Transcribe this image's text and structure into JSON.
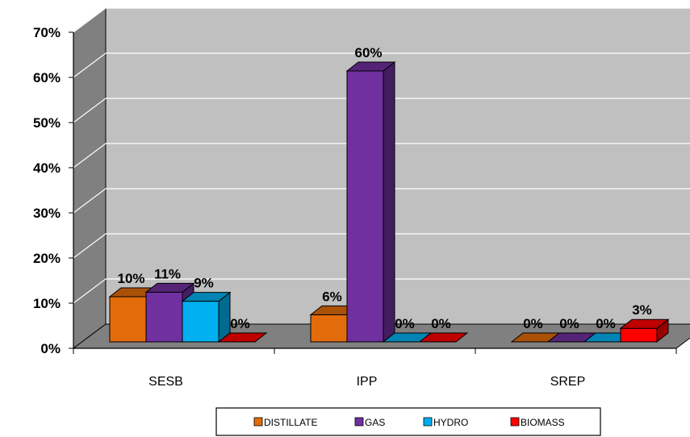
{
  "chart_data": {
    "type": "bar",
    "categories": [
      "SESB",
      "IPP",
      "SREP"
    ],
    "series": [
      {
        "name": "DISTILLATE",
        "color": "#E36C0A",
        "values": [
          10,
          6,
          0
        ]
      },
      {
        "name": "GAS",
        "color": "#7030A0",
        "values": [
          11,
          60,
          0
        ]
      },
      {
        "name": "HYDRO",
        "color": "#00B0F0",
        "values": [
          9,
          0,
          0
        ]
      },
      {
        "name": "BIOMASS",
        "color": "#FF0000",
        "values": [
          0,
          0,
          3
        ]
      }
    ],
    "data_labels": [
      [
        "10%",
        "6%",
        "0%"
      ],
      [
        "11%",
        "60%",
        "0%"
      ],
      [
        "9%",
        "0%",
        "0%"
      ],
      [
        "0%",
        "0%",
        "3%"
      ]
    ],
    "ylim": [
      0,
      70
    ],
    "yticks": [
      "0%",
      "10%",
      "20%",
      "30%",
      "40%",
      "50%",
      "60%",
      "70%"
    ],
    "grid": true,
    "legend": "bottom",
    "style": "3d",
    "wall_color": "#C0C0C0",
    "floor_color": "#808080",
    "title": "",
    "xlabel": "",
    "ylabel": ""
  }
}
